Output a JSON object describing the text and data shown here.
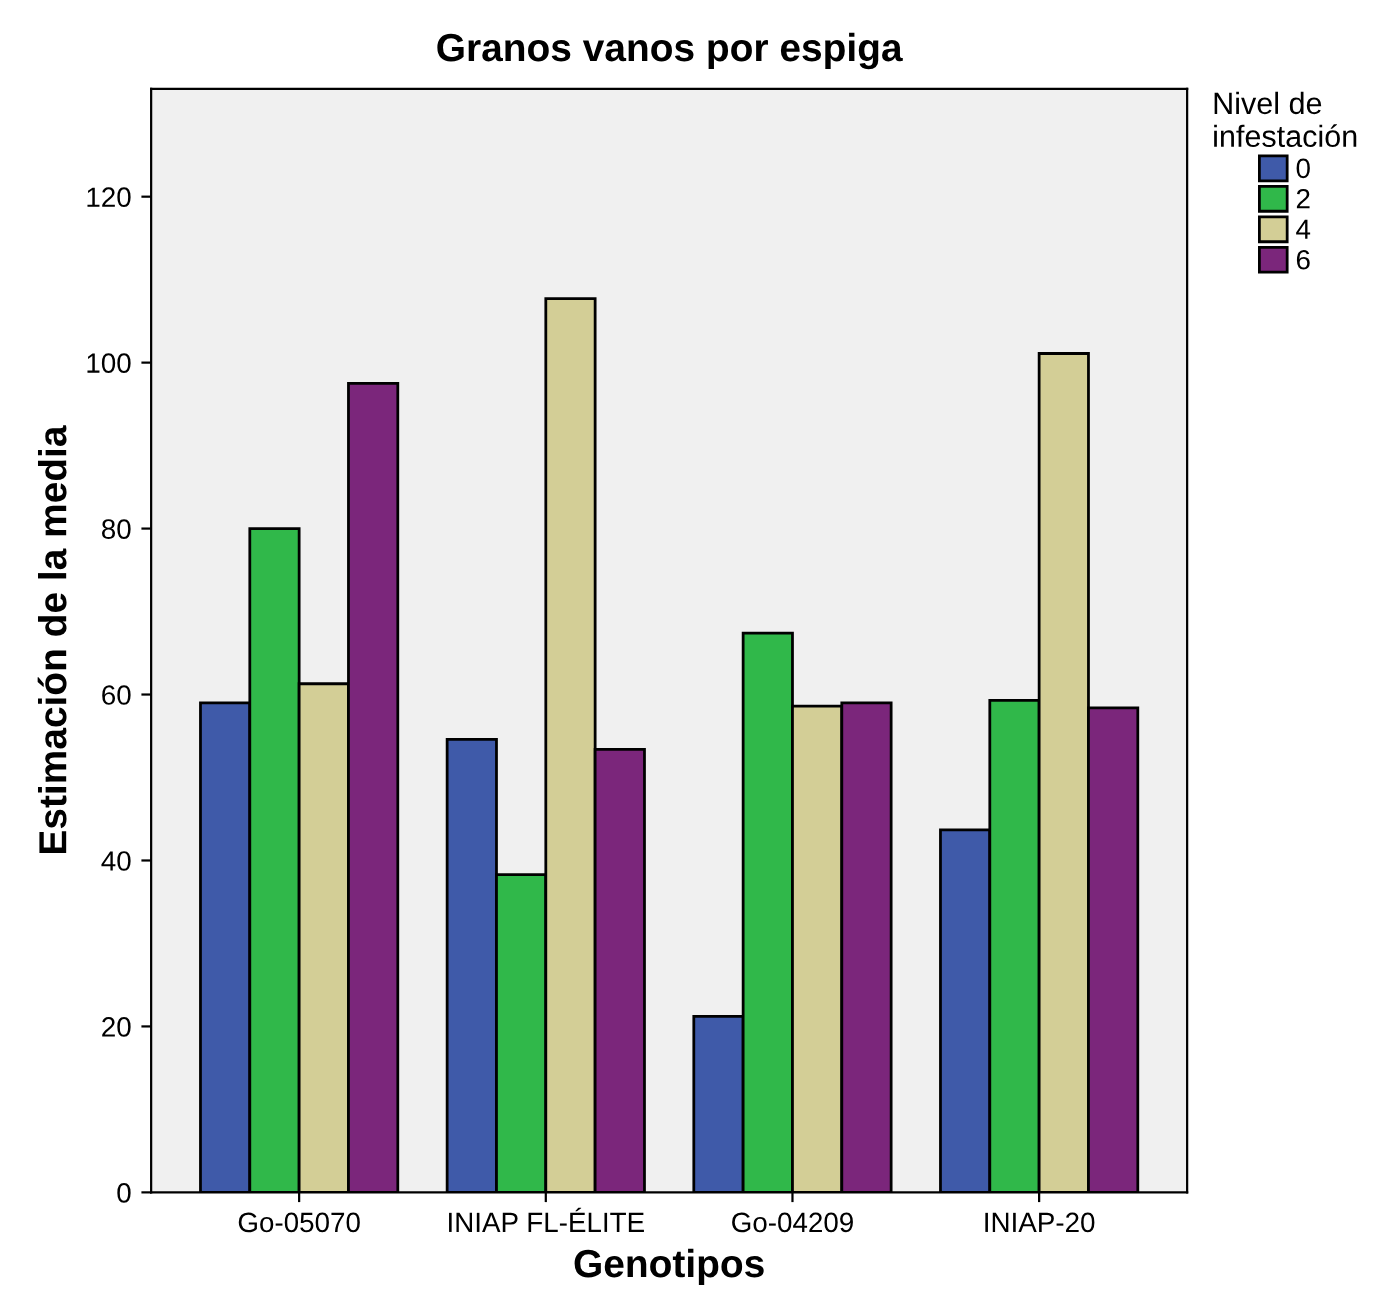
{
  "chart_data": {
    "type": "bar",
    "title": "Granos vanos por espiga",
    "xlabel": "Genotipos",
    "ylabel": "Estimación de la media",
    "legend_title": "Nivel de\ninfestación",
    "legend": "top right",
    "categories": [
      "Go-05070",
      "INIAP FL-ÉLITE",
      "Go-04209",
      "INIAP-20"
    ],
    "series": [
      {
        "name": "0",
        "color": "#3f5aa9",
        "values": [
          59.0,
          54.6,
          21.2,
          43.7
        ]
      },
      {
        "name": "2",
        "color": "#30b84a",
        "values": [
          80.0,
          38.3,
          67.4,
          59.3
        ]
      },
      {
        "name": "4",
        "color": "#d3ce96",
        "values": [
          61.3,
          107.7,
          58.6,
          101.1
        ]
      },
      {
        "name": "6",
        "color": "#7b267b",
        "values": [
          97.5,
          53.4,
          59.0,
          58.4
        ]
      }
    ],
    "ylim": [
      0,
      133
    ],
    "yticks": [
      0,
      20,
      40,
      60,
      80,
      100,
      120
    ],
    "grid": false
  }
}
